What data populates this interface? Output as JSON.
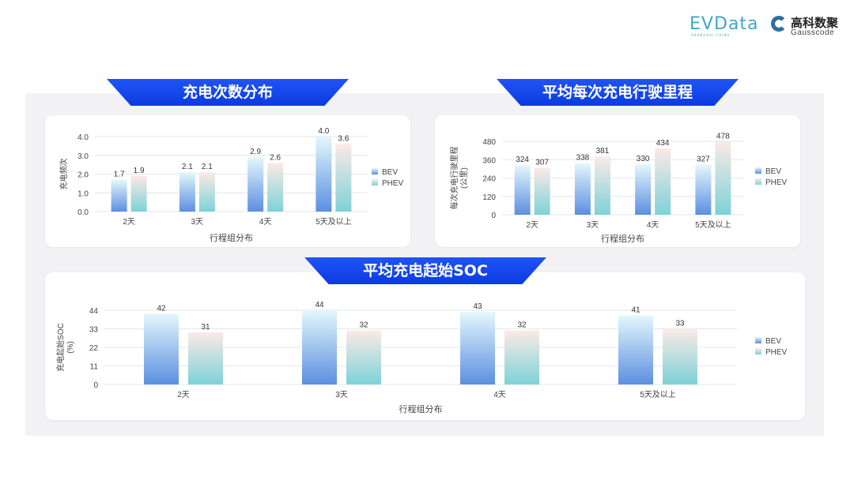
{
  "logos": {
    "evdata": "EVData",
    "evdata_sub": "SHANGHAI CHINA",
    "gauss_cn": "高科数聚",
    "gauss_en": "Gausscode"
  },
  "colors": {
    "banner": "#1447ef",
    "bev_top": "#e4f7fc",
    "bev_bottom": "#5b8fe0",
    "phev_top": "#fbeae6",
    "phev_bottom": "#7dd2d8",
    "grid": "#e6e6ea",
    "panel": "#f2f2f4"
  },
  "chart_data": [
    {
      "type": "bar",
      "title": "充电次数分布",
      "categories": [
        "2天",
        "3天",
        "4天",
        "5天及以上"
      ],
      "series": [
        {
          "name": "BEV",
          "values": [
            1.7,
            2.1,
            2.9,
            4.0
          ]
        },
        {
          "name": "PHEV",
          "values": [
            1.9,
            2.1,
            2.6,
            3.6
          ]
        }
      ],
      "xlabel": "行程组分布",
      "ylabel": "充电频次",
      "ylim": [
        0,
        4.0
      ],
      "yticks": [
        "0.0",
        "1.0",
        "2.0",
        "3.0",
        "4.0"
      ],
      "decimals": 1,
      "grid": true,
      "legend": "right"
    },
    {
      "type": "bar",
      "title": "平均每次充电行驶里程",
      "categories": [
        "2天",
        "3天",
        "4天",
        "5天及以上"
      ],
      "series": [
        {
          "name": "BEV",
          "values": [
            324,
            338,
            330,
            327
          ]
        },
        {
          "name": "PHEV",
          "values": [
            307,
            381,
            434,
            478
          ]
        }
      ],
      "xlabel": "行程组分布",
      "ylabel": "每次充电行驶里程",
      "ylabel2": "(公里)",
      "ylim": [
        0,
        480
      ],
      "yticks": [
        "0",
        "120",
        "240",
        "360",
        "480"
      ],
      "decimals": 0,
      "grid": true,
      "legend": "right"
    },
    {
      "type": "bar",
      "title": "平均充电起始SOC",
      "categories": [
        "2天",
        "3天",
        "4天",
        "5天及以上"
      ],
      "series": [
        {
          "name": "BEV",
          "values": [
            42,
            44,
            43,
            41
          ]
        },
        {
          "name": "PHEV",
          "values": [
            31,
            32,
            32,
            33
          ]
        }
      ],
      "xlabel": "行程组分布",
      "ylabel": "充电起始SOC",
      "ylabel2": "(%)",
      "ylim": [
        0,
        44
      ],
      "yticks": [
        "0",
        "11",
        "22",
        "33",
        "44"
      ],
      "decimals": 0,
      "grid": true,
      "legend": "right"
    }
  ]
}
